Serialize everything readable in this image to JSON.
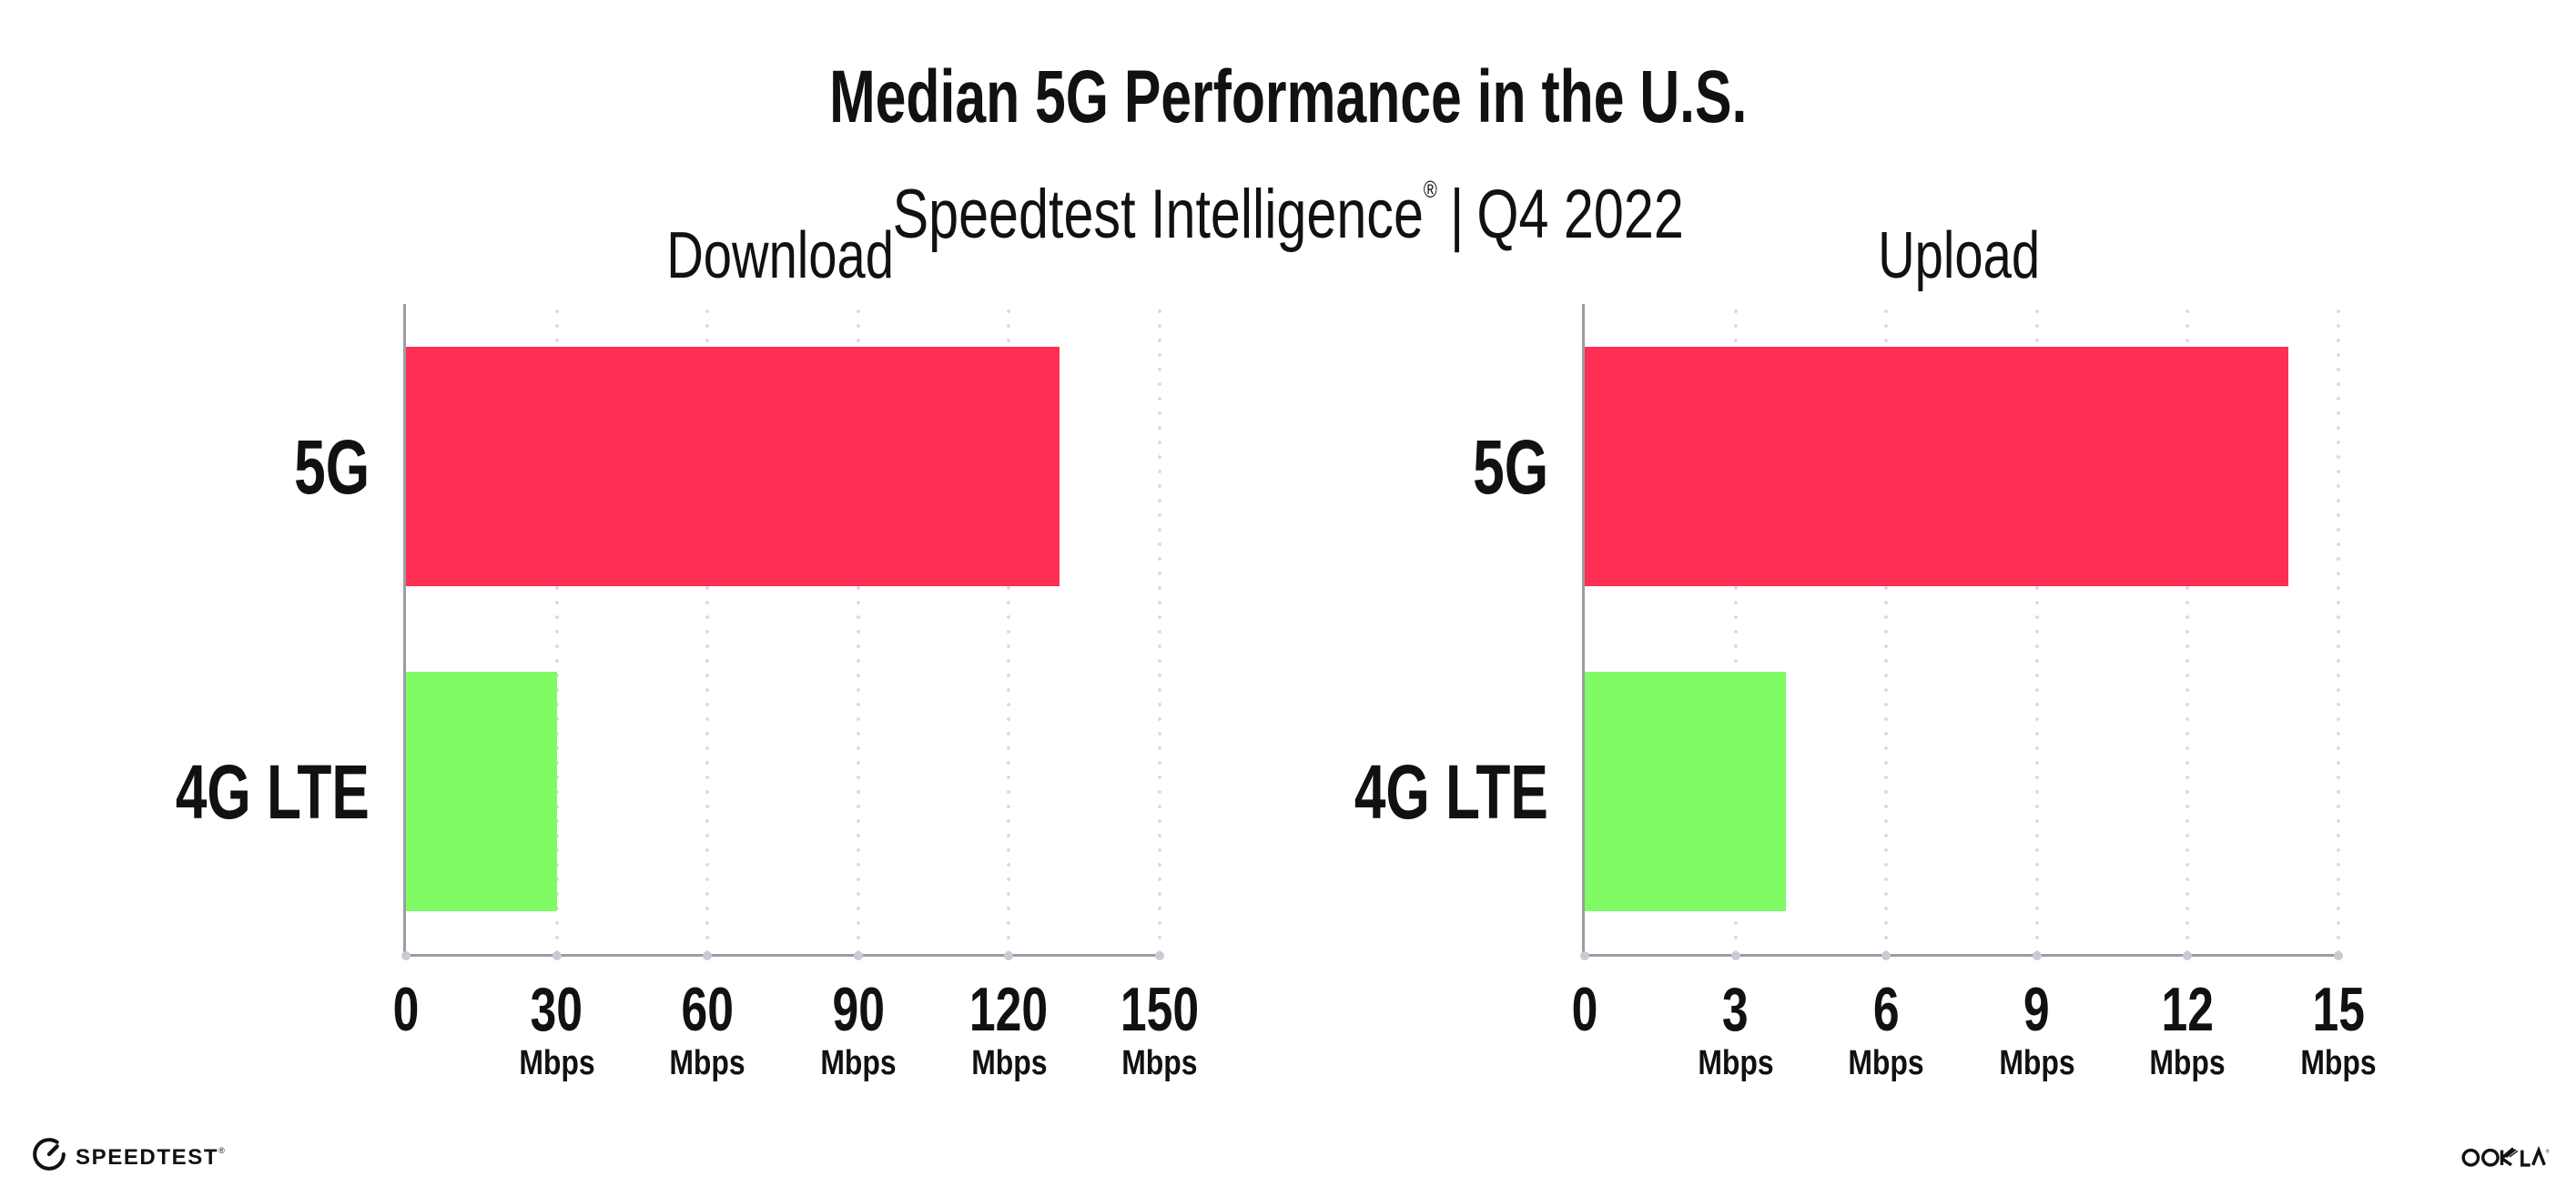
{
  "header": {
    "title": "Median 5G Performance in the U.S.",
    "subtitle_brand": "Speedtest Intelligence",
    "subtitle_regmark": "®",
    "subtitle_separator": "|",
    "subtitle_period": "Q4 2022"
  },
  "footer": {
    "speedtest_label": "SPEEDTEST",
    "speedtest_mark": "®",
    "ookla_label": "OOKLA",
    "ookla_mark": "®"
  },
  "colors": {
    "bar_5g": "#FF2E55",
    "bar_4g_lte": "#80FB66",
    "axis": "#9b9ca3",
    "grid_dot": "#d8d9e2",
    "axis_tick_dot": "#c9cad4",
    "text": "#111111",
    "background": "#ffffff"
  },
  "chart_data": [
    {
      "type": "bar",
      "orientation": "horizontal",
      "title": "Download",
      "categories": [
        "5G",
        "4G LTE"
      ],
      "values": [
        130,
        30
      ],
      "unit": "Mbps",
      "tick_unit": "Mbps",
      "xlim": [
        0,
        150
      ],
      "xticks": [
        0,
        30,
        60,
        90,
        120,
        150
      ],
      "bar_colors": [
        "#FF2E55",
        "#80FB66"
      ],
      "grid": "dotted-vertical",
      "legend": "none"
    },
    {
      "type": "bar",
      "orientation": "horizontal",
      "title": "Upload",
      "categories": [
        "5G",
        "4G LTE"
      ],
      "values": [
        14,
        4
      ],
      "unit": "Mbps",
      "tick_unit": "Mbps",
      "xlim": [
        0,
        15
      ],
      "xticks": [
        0,
        3,
        6,
        9,
        12,
        15
      ],
      "bar_colors": [
        "#FF2E55",
        "#80FB66"
      ],
      "grid": "dotted-vertical",
      "legend": "none"
    }
  ]
}
